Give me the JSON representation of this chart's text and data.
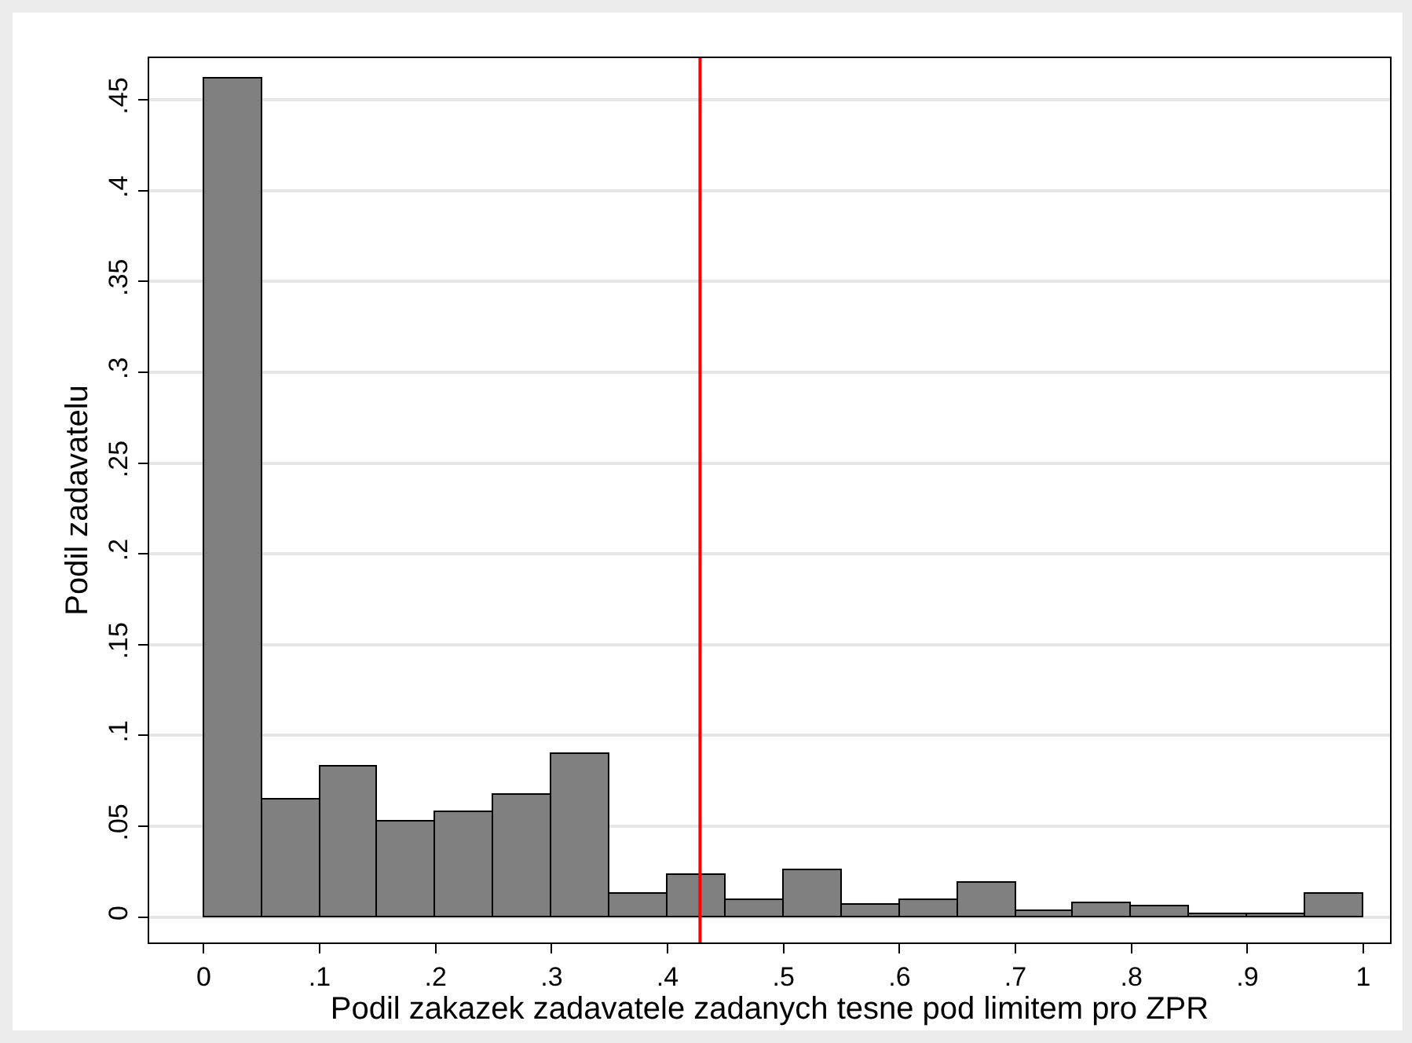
{
  "chart_data": {
    "type": "histogram",
    "xlabel": "Podil zakazek zadavatele zadanych tesne pod limitem pro ZPR",
    "ylabel": "Podil zadavatelu",
    "bins": [
      0,
      0.05,
      0.1,
      0.15,
      0.2,
      0.25,
      0.3,
      0.35,
      0.4,
      0.45,
      0.5,
      0.55,
      0.6,
      0.65,
      0.7,
      0.75,
      0.8,
      0.85,
      0.9,
      0.95,
      1
    ],
    "values": [
      0.462,
      0.065,
      0.083,
      0.053,
      0.058,
      0.067,
      0.09,
      0.013,
      0.023,
      0.009,
      0.026,
      0.007,
      0.009,
      0.019,
      0.003,
      0.008,
      0.006,
      0.002,
      0.002,
      0.013
    ],
    "color": "#808080",
    "xlim": [
      -0.047,
      1.023
    ],
    "ylim": [
      -0.014,
      0.473
    ],
    "xticks": [
      0,
      {
        "value": 0.1,
        "label": ".1"
      },
      {
        "value": 0.2,
        "label": ".2"
      },
      {
        "value": 0.3,
        "label": ".3"
      },
      {
        "value": 0.4,
        "label": ".4"
      },
      {
        "value": 0.5,
        "label": ".5"
      },
      {
        "value": 0.6,
        "label": ".6"
      },
      {
        "value": 0.7,
        "label": ".7"
      },
      {
        "value": 0.8,
        "label": ".8"
      },
      {
        "value": 0.9,
        "label": ".9"
      },
      1
    ],
    "yticks": [
      0,
      {
        "value": 0.05,
        "label": ".05"
      },
      {
        "value": 0.1,
        "label": ".1"
      },
      {
        "value": 0.15,
        "label": ".15"
      },
      {
        "value": 0.2,
        "label": ".2"
      },
      {
        "value": 0.25,
        "label": ".25"
      },
      {
        "value": 0.3,
        "label": ".3"
      },
      {
        "value": 0.35,
        "label": ".35"
      },
      {
        "value": 0.4,
        "label": ".4"
      },
      {
        "value": 0.45,
        "label": ".45"
      }
    ],
    "ref_lines": [
      {
        "axis": "x",
        "value": 0.428,
        "color": "#ff0000"
      }
    ],
    "grid": "y",
    "legend": false
  }
}
